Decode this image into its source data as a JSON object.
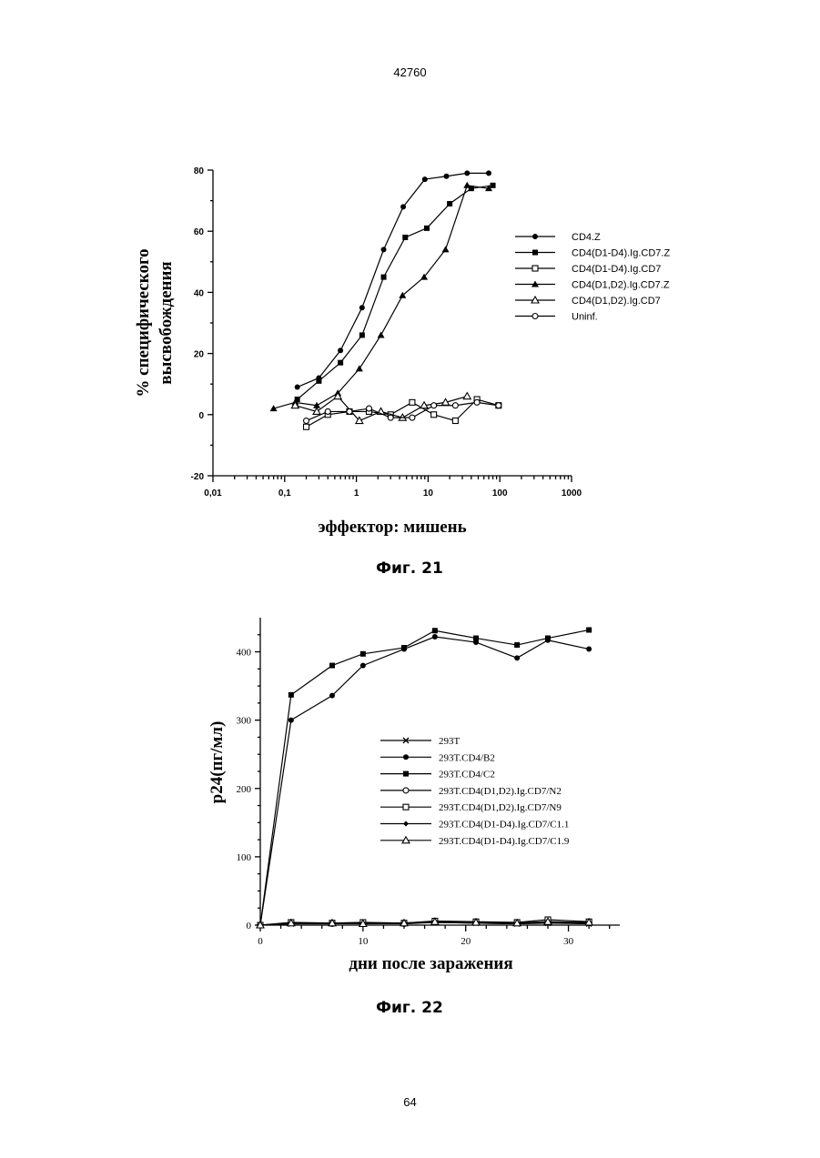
{
  "page": {
    "header_number": "42760",
    "footer_number": "64"
  },
  "figures": [
    {
      "caption": "Фиг. 21",
      "chart_data": {
        "type": "line",
        "x_scale": "log",
        "xlabel": "эффектор: мишень",
        "ylabel_line1": "% специфического",
        "ylabel_line2": "высвобождения",
        "xlim": [
          0.01,
          1000
        ],
        "ylim": [
          -20,
          80
        ],
        "x_ticks": [
          {
            "v": 0.01,
            "label": "0,01"
          },
          {
            "v": 0.1,
            "label": "0,1"
          },
          {
            "v": 1,
            "label": "1"
          },
          {
            "v": 10,
            "label": "10"
          },
          {
            "v": 100,
            "label": "100"
          },
          {
            "v": 1000,
            "label": "1000"
          }
        ],
        "y_ticks": [
          -20,
          0,
          20,
          40,
          60,
          80
        ],
        "legend_position": "right",
        "series": [
          {
            "name": "CD4.Z",
            "marker": "filled-circle",
            "x": [
              0.15,
              0.3,
              0.6,
              1.2,
              2.4,
              4.5,
              9,
              18,
              35,
              70
            ],
            "y": [
              9,
              12,
              21,
              35,
              54,
              68,
              77,
              78,
              79,
              79
            ]
          },
          {
            "name": "CD4(D1-D4).Ig.CD7.Z",
            "marker": "filled-square",
            "x": [
              0.15,
              0.3,
              0.6,
              1.2,
              2.4,
              4.8,
              9.6,
              20,
              40,
              80
            ],
            "y": [
              5,
              11,
              17,
              26,
              45,
              58,
              61,
              69,
              74,
              75
            ]
          },
          {
            "name": "CD4(D1-D4).Ig.CD7",
            "marker": "open-square",
            "x": [
              0.2,
              0.4,
              0.8,
              1.5,
              3,
              6,
              12,
              24,
              48,
              96
            ],
            "y": [
              -4,
              0,
              1,
              1,
              0,
              4,
              0,
              -2,
              5,
              3
            ]
          },
          {
            "name": "CD4(D1,D2).Ig.CD7.Z",
            "marker": "filled-triangle",
            "x": [
              0.07,
              0.14,
              0.28,
              0.55,
              1.1,
              2.2,
              4.4,
              8.8,
              17.5,
              35,
              70
            ],
            "y": [
              2,
              4,
              3,
              7,
              15,
              26,
              39,
              45,
              54,
              75,
              74
            ]
          },
          {
            "name": "CD4(D1,D2).Ig.CD7",
            "marker": "open-triangle",
            "x": [
              0.14,
              0.28,
              0.55,
              1.1,
              2.2,
              4.4,
              8.8,
              17.5,
              35
            ],
            "y": [
              3,
              1,
              6,
              -2,
              1,
              -1,
              3,
              4,
              6
            ]
          },
          {
            "name": "Uninf.",
            "marker": "open-circle",
            "x": [
              0.2,
              0.4,
              0.8,
              1.5,
              3,
              6,
              12,
              24,
              48,
              96
            ],
            "y": [
              -2,
              1,
              1,
              2,
              -1,
              -1,
              3,
              3,
              4,
              3
            ]
          }
        ]
      }
    },
    {
      "caption": "Фиг. 22",
      "chart_data": {
        "type": "line",
        "xlabel": "дни после заражения",
        "ylabel": "p24(пг/мл)",
        "xlim": [
          0,
          35
        ],
        "ylim": [
          0,
          450
        ],
        "x_ticks": [
          0,
          10,
          20,
          30
        ],
        "y_ticks": [
          0,
          100,
          200,
          300,
          400
        ],
        "legend_position": "center-right",
        "series": [
          {
            "name": "293T",
            "marker": "x",
            "x": [
              0,
              3,
              7,
              10,
              14,
              17,
              21,
              25,
              28,
              32
            ],
            "y": [
              0,
              2,
              3,
              2,
              3,
              4,
              3,
              2,
              3,
              2
            ]
          },
          {
            "name": "293T.CD4/B2",
            "marker": "filled-circle",
            "x": [
              0,
              3,
              7,
              10,
              14,
              17,
              21,
              25,
              28,
              32
            ],
            "y": [
              0,
              300,
              336,
              380,
              404,
              422,
              414,
              391,
              417,
              404
            ]
          },
          {
            "name": "293T.CD4/C2",
            "marker": "filled-square",
            "x": [
              0,
              3,
              7,
              10,
              14,
              17,
              21,
              25,
              28,
              32
            ],
            "y": [
              0,
              337,
              380,
              397,
              406,
              431,
              420,
              410,
              420,
              432
            ]
          },
          {
            "name": "293T.CD4(D1,D2).Ig.CD7/N2",
            "marker": "open-circle",
            "x": [
              0,
              3,
              7,
              10,
              14,
              17,
              21,
              25,
              28,
              32
            ],
            "y": [
              0,
              3,
              2,
              3,
              2,
              5,
              4,
              3,
              5,
              3
            ]
          },
          {
            "name": "293T.CD4(D1,D2).Ig.CD7/N9",
            "marker": "open-square",
            "x": [
              0,
              3,
              7,
              10,
              14,
              17,
              21,
              25,
              28,
              32
            ],
            "y": [
              0,
              4,
              3,
              4,
              3,
              6,
              5,
              4,
              8,
              5
            ]
          },
          {
            "name": "293T.CD4(D1-D4).Ig.CD7/C1.1",
            "marker": "filled-diamond",
            "x": [
              0,
              3,
              7,
              10,
              14,
              17,
              21,
              25,
              28,
              32
            ],
            "y": [
              0,
              2,
              2,
              3,
              2,
              4,
              3,
              2,
              4,
              2
            ]
          },
          {
            "name": "293T.CD4(D1-D4).Ig.CD7/C1.9",
            "marker": "open-triangle",
            "x": [
              0,
              3,
              7,
              10,
              14,
              17,
              21,
              25,
              28,
              32
            ],
            "y": [
              0,
              3,
              3,
              2,
              3,
              5,
              4,
              3,
              5,
              4
            ]
          }
        ]
      }
    }
  ]
}
